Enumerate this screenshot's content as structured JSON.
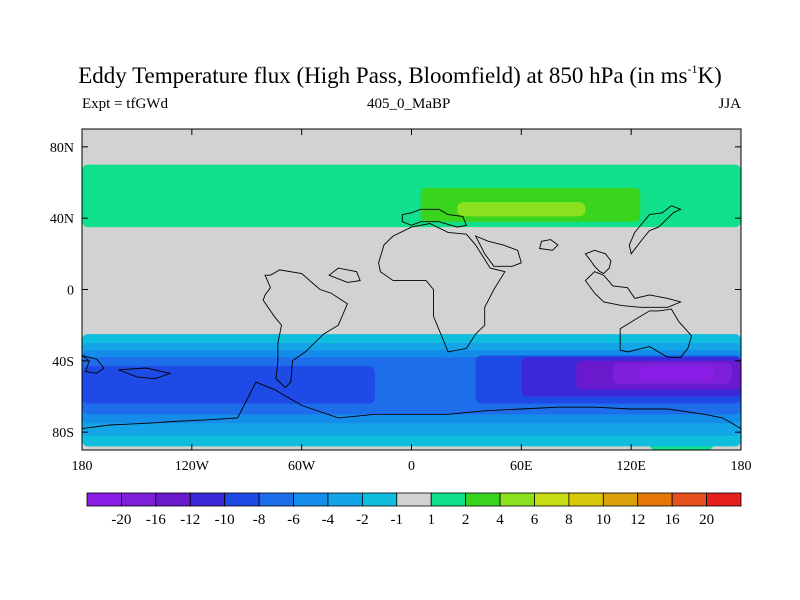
{
  "title": {
    "main": "Eddy Temperature flux (High Pass, Bloomfield) at 850 hPa (in ms",
    "superscript": "-1",
    "suffix": "K)"
  },
  "subtitle": {
    "left": "Expt = tfGWd",
    "center": "405_0_MaBP",
    "right": "JJA"
  },
  "chart_data": {
    "type": "heatmap",
    "projection": "cylindrical-equidistant",
    "title": "Eddy Temperature flux (High Pass, Bloomfield) at 850 hPa (in ms-1K)",
    "experiment": "tfGWd",
    "run": "405_0_MaBP",
    "season": "JJA",
    "xlim": [
      -180,
      180
    ],
    "ylim": [
      -90,
      90
    ],
    "x_ticks": [
      {
        "value": -180,
        "label": "180"
      },
      {
        "value": -120,
        "label": "120W"
      },
      {
        "value": -60,
        "label": "60W"
      },
      {
        "value": 0,
        "label": "0"
      },
      {
        "value": 60,
        "label": "60E"
      },
      {
        "value": 120,
        "label": "120E"
      },
      {
        "value": 180,
        "label": "180"
      }
    ],
    "y_ticks": [
      {
        "value": 80,
        "label": "80N"
      },
      {
        "value": 40,
        "label": "40N"
      },
      {
        "value": 0,
        "label": "0"
      },
      {
        "value": -40,
        "label": "40S"
      },
      {
        "value": -80,
        "label": "80S"
      }
    ],
    "colorbar": {
      "labels": [
        "-20",
        "-16",
        "-12",
        "-10",
        "-8",
        "-6",
        "-4",
        "-2",
        "-1",
        "1",
        "2",
        "4",
        "6",
        "8",
        "10",
        "12",
        "16",
        "20"
      ],
      "colors": [
        "#8a1ee6",
        "#7d1ed9",
        "#6a1acc",
        "#3c28d9",
        "#1e4be6",
        "#1e6eeb",
        "#148cea",
        "#14a5e8",
        "#0fbedd",
        "#d2d2d2",
        "#10e08c",
        "#38d41e",
        "#8ce11e",
        "#c8dc14",
        "#d8c80a",
        "#dca00a",
        "#e6780a",
        "#e6501e",
        "#e61e1e"
      ]
    },
    "levels": {
      "-1": "#0fbedd",
      "-2": "#14a5e8",
      "-4": "#148cea",
      "-6": "#1e6eeb",
      "-8": "#1e4be6",
      "-10": "#3c28d9",
      "-12": "#6a1acc",
      "-16": "#7d1ed9",
      "-20": "#8a1ee6",
      "0": "#d2d2d2",
      "1": "#10e08c",
      "2": "#38d41e",
      "4": "#8ce11e"
    },
    "regions": [
      {
        "level": "1",
        "lon": [
          -180,
          180
        ],
        "lat": [
          35,
          70
        ]
      },
      {
        "level": "2",
        "lon": [
          5,
          125
        ],
        "lat": [
          38,
          57
        ]
      },
      {
        "level": "4",
        "lon": [
          25,
          95
        ],
        "lat": [
          41,
          49
        ]
      },
      {
        "level": "1",
        "lon": [
          130,
          165
        ],
        "lat": [
          -90,
          -82
        ]
      },
      {
        "level": "-1",
        "lon": [
          -180,
          180
        ],
        "lat": [
          -88,
          -25
        ]
      },
      {
        "level": "-2",
        "lon": [
          -180,
          180
        ],
        "lat": [
          -82,
          -30
        ]
      },
      {
        "level": "-4",
        "lon": [
          -180,
          180
        ],
        "lat": [
          -75,
          -34
        ]
      },
      {
        "level": "-6",
        "lon": [
          -180,
          180
        ],
        "lat": [
          -70,
          -38
        ]
      },
      {
        "level": "-8",
        "lon": [
          -180,
          -20
        ],
        "lat": [
          -64,
          -43
        ]
      },
      {
        "level": "-8",
        "lon": [
          35,
          180
        ],
        "lat": [
          -64,
          -37
        ]
      },
      {
        "level": "-10",
        "lon": [
          60,
          180
        ],
        "lat": [
          -60,
          -38
        ]
      },
      {
        "level": "-12",
        "lon": [
          90,
          180
        ],
        "lat": [
          -56,
          -40
        ]
      },
      {
        "level": "-16",
        "lon": [
          110,
          175
        ],
        "lat": [
          -53,
          -41
        ]
      },
      {
        "level": "-20",
        "lon": [
          125,
          165
        ],
        "lat": [
          -51,
          -43
        ]
      }
    ],
    "coastlines": [
      [
        [
          -5,
          42
        ],
        [
          0,
          43
        ],
        [
          5,
          45
        ],
        [
          15,
          45
        ],
        [
          20,
          42
        ],
        [
          28,
          41
        ],
        [
          30,
          36
        ],
        [
          25,
          35
        ],
        [
          15,
          38
        ],
        [
          5,
          38
        ],
        [
          0,
          36
        ],
        [
          -5,
          38
        ]
      ],
      [
        [
          -18,
          15
        ],
        [
          -15,
          25
        ],
        [
          -10,
          30
        ],
        [
          0,
          35
        ],
        [
          10,
          37
        ],
        [
          20,
          32
        ],
        [
          30,
          31
        ],
        [
          35,
          25
        ],
        [
          43,
          12
        ],
        [
          51,
          10
        ],
        [
          45,
          0
        ],
        [
          40,
          -10
        ],
        [
          40,
          -20
        ],
        [
          35,
          -25
        ],
        [
          30,
          -33
        ],
        [
          20,
          -35
        ],
        [
          18,
          -30
        ],
        [
          12,
          -15
        ],
        [
          12,
          0
        ],
        [
          8,
          5
        ],
        [
          0,
          5
        ],
        [
          -10,
          5
        ],
        [
          -17,
          10
        ]
      ],
      [
        [
          35,
          30
        ],
        [
          42,
          27
        ],
        [
          50,
          25
        ],
        [
          58,
          22
        ],
        [
          60,
          15
        ],
        [
          55,
          13
        ],
        [
          45,
          13
        ],
        [
          40,
          20
        ]
      ],
      [
        [
          -80,
          8
        ],
        [
          -77,
          1
        ],
        [
          -80,
          -3
        ],
        [
          -81,
          -6
        ],
        [
          -75,
          -15
        ],
        [
          -71,
          -20
        ],
        [
          -73,
          -30
        ],
        [
          -73,
          -40
        ],
        [
          -74,
          -50
        ],
        [
          -69,
          -55
        ],
        [
          -66,
          -52
        ],
        [
          -65,
          -40
        ],
        [
          -58,
          -35
        ],
        [
          -48,
          -25
        ],
        [
          -40,
          -20
        ],
        [
          -35,
          -8
        ],
        [
          -44,
          -2
        ],
        [
          -50,
          0
        ],
        [
          -60,
          9
        ],
        [
          -72,
          11
        ],
        [
          -77,
          8
        ]
      ],
      [
        [
          -85,
          -52
        ],
        [
          -75,
          -56
        ],
        [
          -60,
          -65
        ],
        [
          -40,
          -72
        ],
        [
          -20,
          -70
        ],
        [
          0,
          -70
        ],
        [
          20,
          -70
        ],
        [
          40,
          -68
        ],
        [
          60,
          -67
        ],
        [
          80,
          -66
        ],
        [
          100,
          -66
        ],
        [
          120,
          -67
        ],
        [
          140,
          -67
        ],
        [
          160,
          -70
        ],
        [
          170,
          -72
        ],
        [
          175,
          -75
        ],
        [
          180,
          -78
        ],
        [
          180,
          -90
        ],
        [
          -180,
          -90
        ],
        [
          -180,
          -78
        ],
        [
          -165,
          -76
        ],
        [
          -145,
          -75
        ],
        [
          -130,
          -74
        ],
        [
          -110,
          -73
        ],
        [
          -95,
          -72
        ]
      ],
      [
        [
          114,
          -22
        ],
        [
          114,
          -34
        ],
        [
          118,
          -35
        ],
        [
          130,
          -32
        ],
        [
          140,
          -38
        ],
        [
          147,
          -38
        ],
        [
          151,
          -33
        ],
        [
          153,
          -26
        ],
        [
          146,
          -18
        ],
        [
          142,
          -11
        ],
        [
          135,
          -12
        ],
        [
          130,
          -12
        ],
        [
          122,
          -17
        ]
      ],
      [
        [
          95,
          5
        ],
        [
          100,
          10
        ],
        [
          105,
          8
        ],
        [
          110,
          2
        ],
        [
          118,
          1
        ],
        [
          122,
          -5
        ],
        [
          130,
          -3
        ],
        [
          140,
          -5
        ],
        [
          147,
          -7
        ],
        [
          140,
          -10
        ],
        [
          125,
          -10
        ],
        [
          115,
          -9
        ],
        [
          105,
          -7
        ],
        [
          100,
          -2
        ]
      ],
      [
        [
          95,
          20
        ],
        [
          98,
          16
        ],
        [
          100,
          13
        ],
        [
          103,
          10
        ],
        [
          105,
          9
        ],
        [
          108,
          12
        ],
        [
          109,
          16
        ],
        [
          106,
          20
        ],
        [
          100,
          22
        ]
      ],
      [
        [
          120,
          20
        ],
        [
          126,
          28
        ],
        [
          130,
          33
        ],
        [
          135,
          35
        ],
        [
          140,
          40
        ],
        [
          143,
          43
        ],
        [
          147,
          45
        ],
        [
          142,
          47
        ],
        [
          137,
          43
        ],
        [
          130,
          42
        ],
        [
          126,
          37
        ],
        [
          122,
          32
        ],
        [
          119,
          25
        ]
      ],
      [
        [
          -180,
          -37
        ],
        [
          -176,
          -40
        ],
        [
          -178,
          -46
        ],
        [
          -172,
          -47
        ],
        [
          -168,
          -44
        ],
        [
          -172,
          -39
        ]
      ],
      [
        [
          -45,
          8
        ],
        [
          -35,
          4
        ],
        [
          -28,
          5
        ],
        [
          -30,
          10
        ],
        [
          -40,
          12
        ]
      ],
      [
        [
          -160,
          -45
        ],
        [
          -150,
          -49
        ],
        [
          -140,
          -50
        ],
        [
          -132,
          -47
        ],
        [
          -145,
          -44
        ]
      ],
      [
        [
          70,
          23
        ],
        [
          77,
          22
        ],
        [
          80,
          25
        ],
        [
          76,
          28
        ],
        [
          71,
          27
        ]
      ]
    ]
  }
}
